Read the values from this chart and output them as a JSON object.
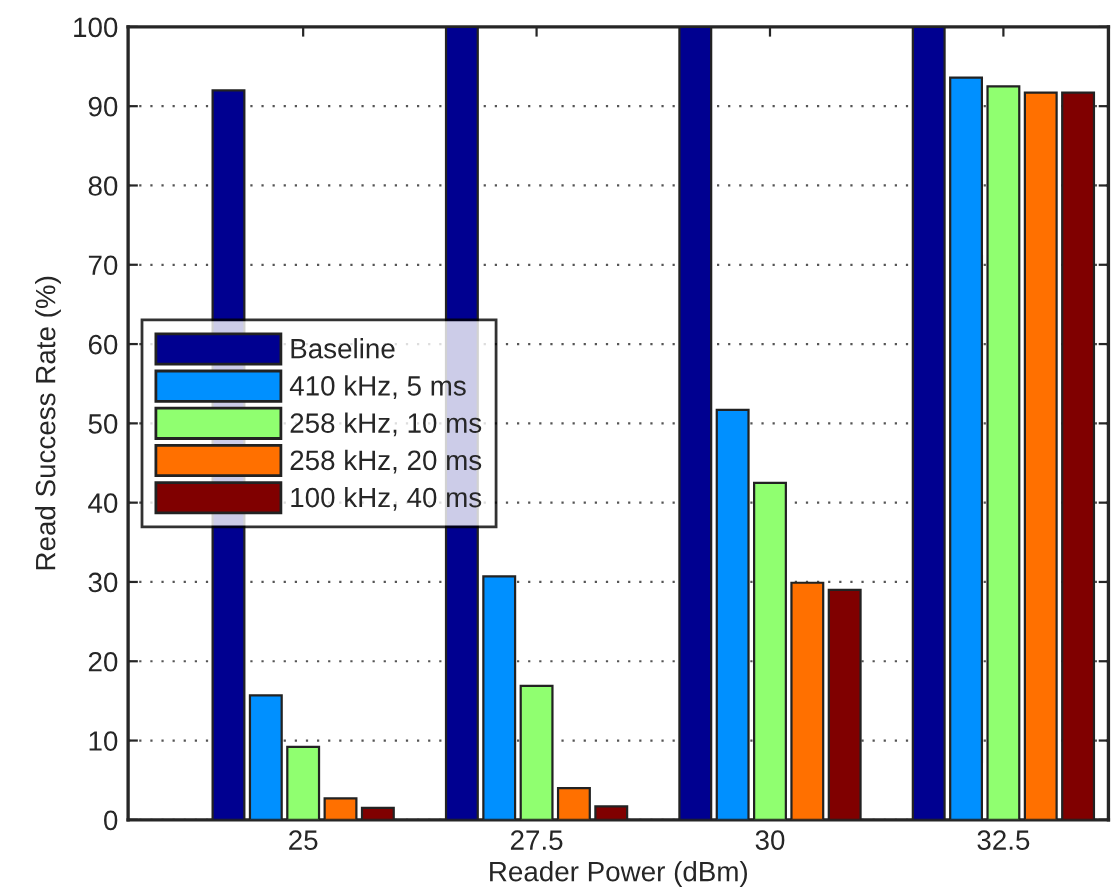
{
  "chart_data": {
    "type": "bar",
    "xlabel": "Reader Power (dBm)",
    "ylabel": "Read Success Rate (%)",
    "categories": [
      "25",
      "27.5",
      "30",
      "32.5"
    ],
    "series": [
      {
        "name": "Baseline",
        "color": "#000090",
        "values": [
          92,
          100,
          100,
          100
        ]
      },
      {
        "name": "410 kHz, 5 ms",
        "color": "#0090ff",
        "values": [
          15.7,
          30.7,
          51.7,
          93.6
        ]
      },
      {
        "name": "258 kHz, 10 ms",
        "color": "#90ff70",
        "values": [
          9.2,
          16.9,
          42.5,
          92.5
        ]
      },
      {
        "name": "258 kHz, 20 ms",
        "color": "#ff7000",
        "values": [
          2.7,
          4.0,
          29.9,
          91.7
        ]
      },
      {
        "name": "100 kHz, 40 ms",
        "color": "#800000",
        "values": [
          1.5,
          1.7,
          29.0,
          91.7
        ]
      }
    ],
    "ylim": [
      0,
      100
    ],
    "yticks": [
      0,
      10,
      20,
      30,
      40,
      50,
      60,
      70,
      80,
      90,
      100
    ],
    "grid": "y",
    "legend": "center left"
  }
}
